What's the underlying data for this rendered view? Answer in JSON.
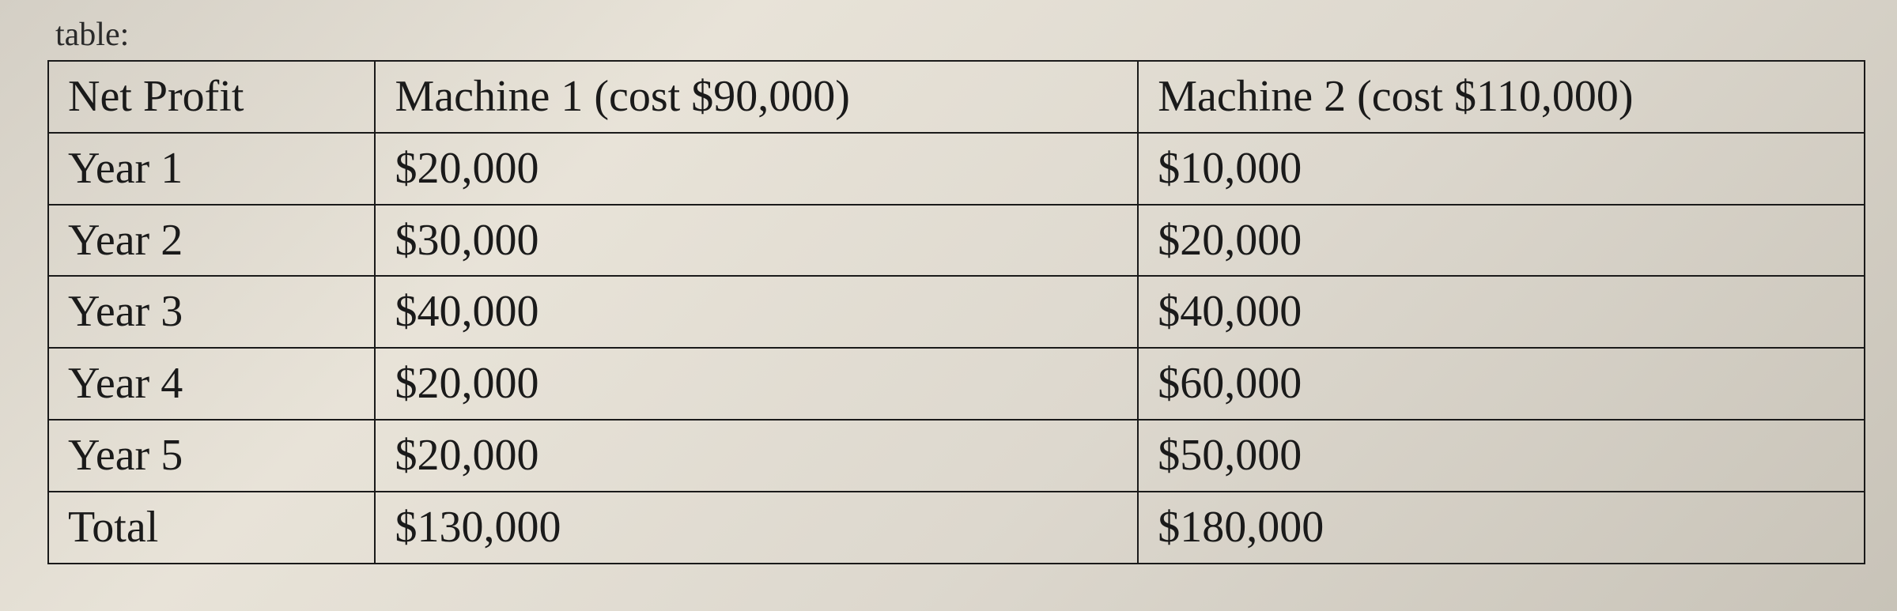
{
  "caption": "table:",
  "table": {
    "columns": [
      "Net Profit",
      "Machine 1 (cost $90,000)",
      "Machine 2 (cost $110,000)"
    ],
    "rows": [
      [
        "Year 1",
        "$20,000",
        "$10,000"
      ],
      [
        "Year 2",
        "$30,000",
        "$20,000"
      ],
      [
        "Year 3",
        "$40,000",
        "$40,000"
      ],
      [
        "Year 4",
        "$20,000",
        "$60,000"
      ],
      [
        "Year 5",
        "$20,000",
        "$50,000"
      ],
      [
        "Total",
        "$130,000",
        "$180,000"
      ]
    ],
    "border_color": "#1a1a1a",
    "text_color": "#1a1a1a",
    "background_color": "#e0dbd0",
    "font_family": "Times New Roman",
    "header_fontsize": 56,
    "cell_fontsize": 56,
    "column_widths_pct": [
      18,
      42,
      40
    ]
  }
}
